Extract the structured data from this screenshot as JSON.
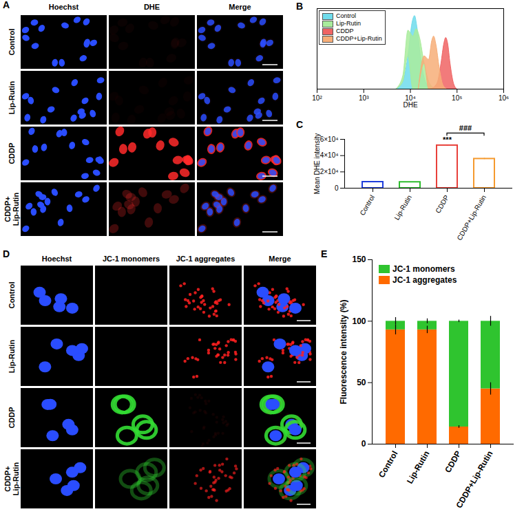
{
  "chart_data": [
    {
      "panel": "B",
      "type": "area",
      "x_label": "DHE",
      "log": "x",
      "xlim": [
        100,
        1000000
      ],
      "xticks": [
        {
          "value": 100,
          "label": "10²"
        },
        {
          "value": 1000,
          "label": "10³"
        },
        {
          "value": 10000,
          "label": "10⁴"
        },
        {
          "value": 100000,
          "label": "10⁵"
        },
        {
          "value": 1000000,
          "label": "10⁶"
        }
      ],
      "ylim": [
        0,
        1.1
      ],
      "tick_labels": "x",
      "legend": "top-left",
      "series": [
        {
          "name": "Control",
          "color": "#6fdcec",
          "x": [
            5000,
            7000,
            9000,
            11000,
            12500,
            14000,
            17000,
            22000,
            30000
          ],
          "values": [
            0,
            0.1,
            0.45,
            0.9,
            1.0,
            0.85,
            0.4,
            0.08,
            0
          ]
        },
        {
          "name": "Lip-Rutin",
          "color": "#a9ec9c",
          "x": [
            5000,
            7000,
            9000,
            11500,
            13500,
            16000,
            20000,
            26000,
            35000
          ],
          "values": [
            0,
            0.08,
            0.35,
            0.72,
            0.82,
            0.7,
            0.35,
            0.08,
            0
          ]
        },
        {
          "name": "CDDP",
          "color": "#f06464",
          "x": [
            28000,
            38000,
            46000,
            53000,
            58000,
            64000,
            72000,
            85000,
            100000
          ],
          "values": [
            0,
            0.08,
            0.35,
            0.62,
            0.7,
            0.62,
            0.35,
            0.08,
            0
          ]
        },
        {
          "name": "CDDP+Lip-Rutin",
          "color": "#f7ae78",
          "x": [
            15000,
            20000,
            25000,
            29000,
            32000,
            36000,
            42000,
            50000,
            60000
          ],
          "values": [
            0,
            0.1,
            0.4,
            0.65,
            0.72,
            0.6,
            0.3,
            0.06,
            0
          ]
        }
      ]
    },
    {
      "panel": "C",
      "type": "bar",
      "y_label": "Mean DHE intensity",
      "categories": [
        "Control",
        "Lip-Rutin",
        "CDDP",
        "CDDP+Lip-Rutin"
      ],
      "values": [
        7600,
        7400,
        52500,
        36000
      ],
      "errors": [
        200,
        200,
        500,
        700
      ],
      "colors": [
        "#1e3ddb",
        "#2dbd2d",
        "#e8403a",
        "#f59a2e"
      ],
      "ylim": [
        0,
        60000
      ],
      "yticks": [
        0,
        {
          "value": 20000,
          "label": "2×10⁴"
        },
        {
          "value": 40000,
          "label": "4×10⁴"
        },
        {
          "value": 60000,
          "label": "6×10⁴"
        }
      ],
      "annotations": [
        {
          "text": "***",
          "category": "CDDP"
        },
        {
          "text": "###",
          "categories": [
            "CDDP",
            "CDDP+Lip-Rutin"
          ]
        }
      ]
    },
    {
      "panel": "E",
      "type": "bar",
      "stacked": true,
      "y_label": "Fluorescence intensity (%)",
      "categories": [
        "Control",
        "Lip-Rutin",
        "CDDP",
        "CDDP+Lip-Rutin"
      ],
      "ylim": [
        0,
        150
      ],
      "yticks": [
        0,
        50,
        100,
        150
      ],
      "legend": "top-left",
      "series": [
        {
          "name": "JC-1 monomers",
          "color": "#2fc42f",
          "values": [
            7,
            7,
            86,
            55
          ],
          "errors": [
            3,
            2,
            1,
            4
          ]
        },
        {
          "name": "JC-1 aggregates",
          "color": "#ff6a00",
          "values": [
            93,
            93,
            14,
            45
          ],
          "errors": [
            4,
            3,
            1,
            5
          ]
        }
      ]
    }
  ],
  "image_panels": [
    {
      "panel": "A",
      "columns": [
        "Hoechst",
        "DHE",
        "Merge"
      ],
      "rows": [
        "Control",
        "Lip-Rutin",
        "CDDP",
        "CDDP+Lip-Rutin"
      ]
    },
    {
      "panel": "D",
      "columns": [
        "Hoechst",
        "JC-1 monomers",
        "JC-1 aggregates",
        "Merge"
      ],
      "rows": [
        "Control",
        "Lip-Rutin",
        "CDDP",
        "CDDP+Lip-Rutin"
      ]
    }
  ]
}
